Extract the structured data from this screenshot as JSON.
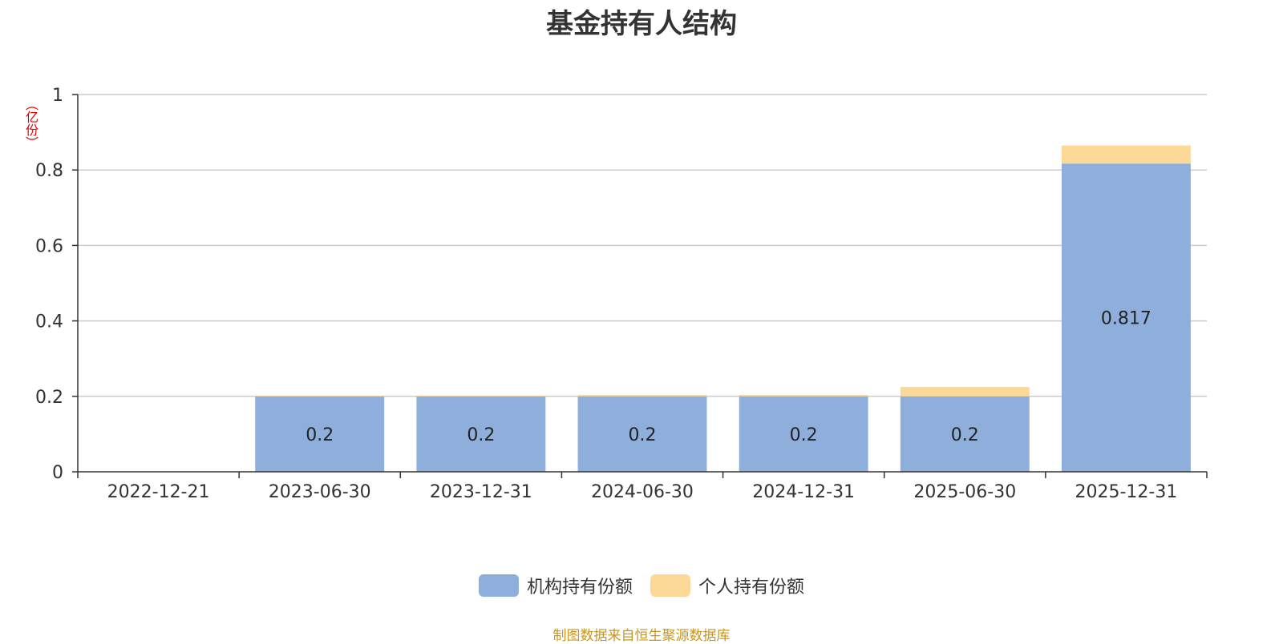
{
  "chart_data": {
    "type": "bar",
    "stacked": true,
    "title": "基金持有人结构",
    "unit_label": "（亿份）",
    "categories": [
      "2022-12-21",
      "2023-06-30",
      "2023-12-31",
      "2024-06-30",
      "2024-12-31",
      "2025-06-30",
      "2025-12-31"
    ],
    "series": [
      {
        "name": "机构持有份额",
        "color": "#8eaedb",
        "values": [
          0,
          0.2,
          0.2,
          0.2,
          0.2,
          0.2,
          0.817
        ],
        "labels": [
          "",
          "0.2",
          "0.2",
          "0.2",
          "0.2",
          "0.2",
          "0.817"
        ]
      },
      {
        "name": "个人持有份额",
        "color": "#fdd998",
        "values": [
          0,
          0.002,
          0.002,
          0.004,
          0.004,
          0.025,
          0.048
        ]
      }
    ],
    "ylim": [
      0,
      1
    ],
    "yticks": [
      "0",
      "0.2",
      "0.4",
      "0.6",
      "0.8",
      "1"
    ],
    "ytick_values": [
      0,
      0.2,
      0.4,
      0.6,
      0.8,
      1
    ],
    "grid": true,
    "legend_position": "bottom-center",
    "source_note": "制图数据来自恒生聚源数据库"
  }
}
